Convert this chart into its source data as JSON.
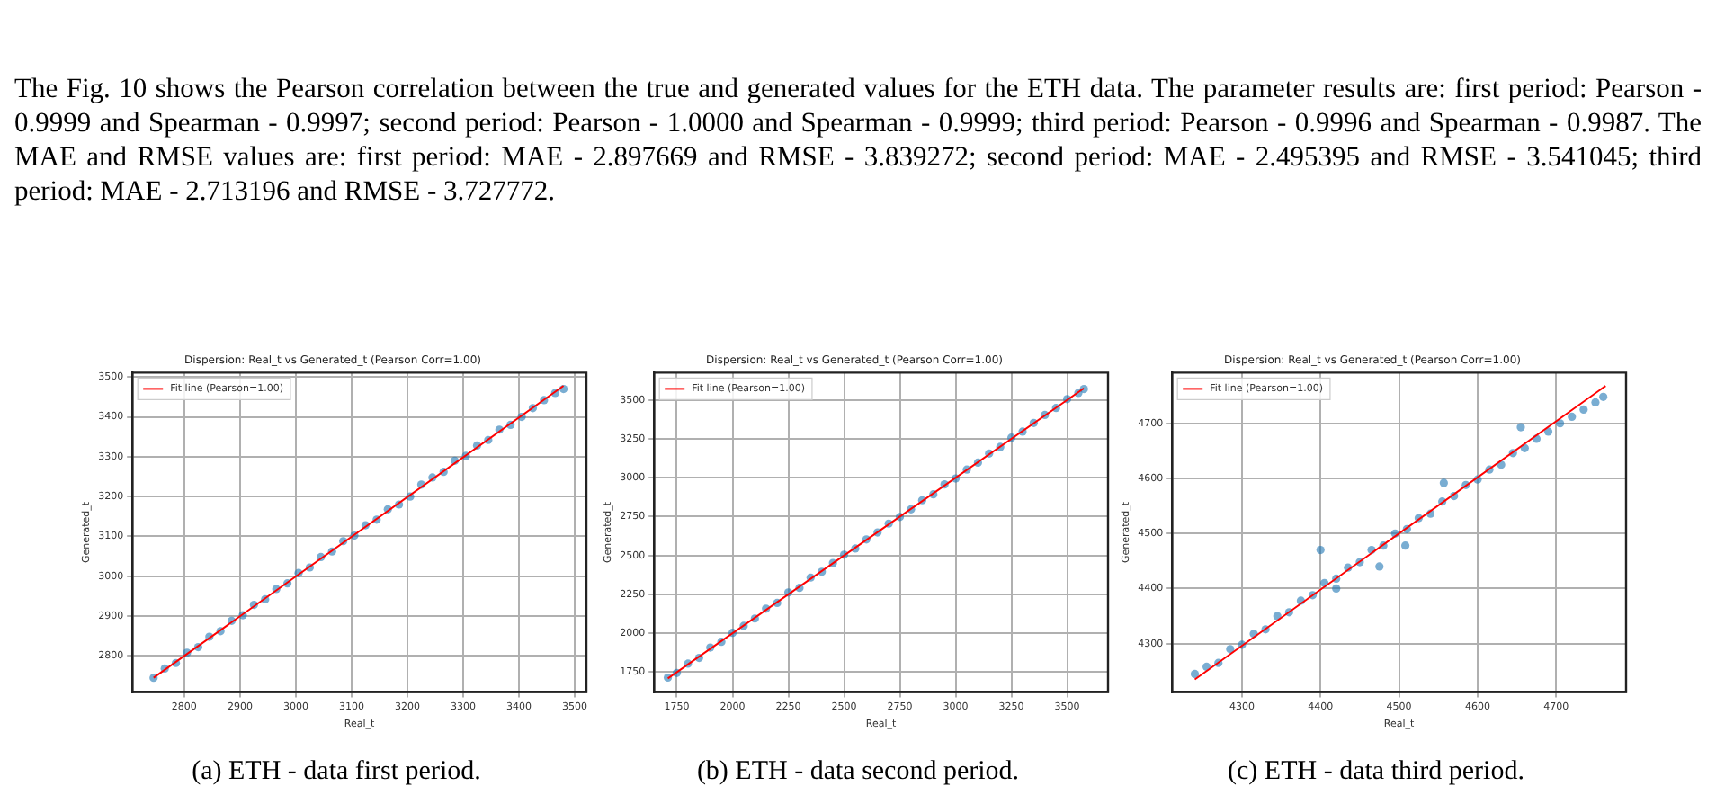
{
  "chart_data": [
    {
      "type": "scatter",
      "title": "Dispersion: Real_t vs Generated_t (Pearson Corr=1.00)",
      "xlabel": "Real_t",
      "ylabel": "Generated_t",
      "grid": true,
      "legend": "top left",
      "annotations": [
        "The Fig. 10 shows the Pearson correlation between the true and generated values for the ETH data. The parameter results are: first period: Pearson - 0.9999 and Spearman - 0.9997; second period: Pearson - 1.0000 and Spearman - 0.9999; third period: Pearson - 0.9996 and Spearman - 0.9987. The MAE and RMSE values are: first period: MAE - 2.897669 and RMSE - 3.839272; second period: MAE - 2.495395 and RMSE - 3.541045; third period: MAE - 2.713196 and RMSE - 3.727772.",
        "(a) ETH - data first period."
      ],
      "xlim": [
        2707,
        3521
      ],
      "xticks": [
        2800,
        2900,
        3000,
        3100,
        3200,
        3300,
        3400,
        3500
      ],
      "ylim": [
        2709,
        3511
      ],
      "yticks": [
        2800,
        2900,
        3000,
        3100,
        3200,
        3300,
        3400,
        3500
      ],
      "series": [
        {
          "marker": "circle",
          "color": "#1f77b4",
          "x": [
            2745,
            2765,
            2785,
            2805,
            2825,
            2845,
            2865,
            2885,
            2905,
            2925,
            2945,
            2965,
            2985,
            3005,
            3025,
            3045,
            3065,
            3085,
            3105,
            3125,
            3145,
            3165,
            3185,
            3205,
            3225,
            3245,
            3265,
            3285,
            3305,
            3325,
            3345,
            3365,
            3385,
            3405,
            3425,
            3445,
            3465,
            3480
          ],
          "values": [
            2745,
            2768,
            2782,
            2808,
            2822,
            2848,
            2862,
            2888,
            2902,
            2928,
            2942,
            2968,
            2982,
            3008,
            3022,
            3048,
            3062,
            3088,
            3102,
            3128,
            3142,
            3168,
            3180,
            3200,
            3230,
            3248,
            3262,
            3290,
            3302,
            3328,
            3342,
            3368,
            3380,
            3400,
            3422,
            3442,
            3460,
            3470
          ]
        },
        {
          "type": "line",
          "marker": "none",
          "name": "Fit line (Pearson=1.00)",
          "color": "#ff0000",
          "x": [
            2745,
            3480
          ],
          "values": [
            2745,
            3478
          ]
        }
      ]
    },
    {
      "type": "scatter",
      "title": "Dispersion: Real_t vs Generated_t (Pearson Corr=1.00)",
      "xlabel": "Real_t",
      "ylabel": "Generated_t",
      "grid": true,
      "legend": "top left",
      "annotations": [
        "(b) ETH - data second period."
      ],
      "xlim": [
        1648,
        3683
      ],
      "xticks": [
        1750,
        2000,
        2250,
        2500,
        2750,
        3000,
        3250,
        3500
      ],
      "ylim": [
        1622,
        3675
      ],
      "yticks": [
        1750,
        2000,
        2250,
        2500,
        2750,
        3000,
        3250,
        3500
      ],
      "series": [
        {
          "marker": "circle",
          "color": "#1f77b4",
          "x": [
            1710,
            1750,
            1800,
            1850,
            1900,
            1950,
            2000,
            2050,
            2100,
            2150,
            2200,
            2250,
            2300,
            2350,
            2400,
            2450,
            2500,
            2550,
            2600,
            2650,
            2700,
            2750,
            2800,
            2850,
            2900,
            2950,
            3000,
            3050,
            3100,
            3150,
            3200,
            3250,
            3300,
            3350,
            3400,
            3450,
            3500,
            3550,
            3575
          ],
          "values": [
            1715,
            1745,
            1805,
            1842,
            1908,
            1945,
            2003,
            2048,
            2095,
            2158,
            2195,
            2262,
            2292,
            2358,
            2395,
            2452,
            2505,
            2545,
            2603,
            2648,
            2705,
            2748,
            2797,
            2855,
            2893,
            2957,
            2995,
            3052,
            3097,
            3155,
            3198,
            3257,
            3296,
            3352,
            3403,
            3448,
            3505,
            3545,
            3570
          ]
        },
        {
          "type": "line",
          "marker": "none",
          "name": "Fit line (Pearson=1.00)",
          "color": "#ff0000",
          "x": [
            1710,
            3575
          ],
          "values": [
            1710,
            3575
          ]
        }
      ]
    },
    {
      "type": "scatter",
      "title": "Dispersion: Real_t vs Generated_t (Pearson Corr=1.00)",
      "xlabel": "Real_t",
      "ylabel": "Generated_t",
      "grid": true,
      "legend": "top left",
      "annotations": [
        "(c) ETH - data third period."
      ],
      "xlim": [
        4211,
        4789
      ],
      "xticks": [
        4300,
        4400,
        4500,
        4600,
        4700
      ],
      "ylim": [
        4212,
        4792
      ],
      "yticks": [
        4300,
        4400,
        4500,
        4600,
        4700
      ],
      "series": [
        {
          "marker": "circle",
          "color": "#1f77b4",
          "x": [
            4240,
            4255,
            4270,
            4285,
            4300,
            4315,
            4330,
            4345,
            4360,
            4375,
            4390,
            4400,
            4405,
            4420,
            4420,
            4435,
            4450,
            4465,
            4475,
            4480,
            4495,
            4508,
            4510,
            4525,
            4540,
            4555,
            4557,
            4570,
            4585,
            4600,
            4615,
            4630,
            4645,
            4655,
            4660,
            4675,
            4690,
            4705,
            4720,
            4735,
            4750,
            4760
          ],
          "values": [
            4245,
            4258,
            4265,
            4290,
            4298,
            4318,
            4326,
            4350,
            4357,
            4378,
            4388,
            4470,
            4410,
            4400,
            4418,
            4438,
            4448,
            4470,
            4440,
            4478,
            4500,
            4478,
            4508,
            4528,
            4536,
            4558,
            4592,
            4568,
            4588,
            4598,
            4616,
            4625,
            4646,
            4693,
            4655,
            4672,
            4685,
            4700,
            4712,
            4725,
            4738,
            4748
          ]
        },
        {
          "type": "line",
          "marker": "none",
          "name": "Fit line (Pearson=1.00)",
          "color": "#ff0000",
          "x": [
            4240,
            4763
          ],
          "values": [
            4235,
            4768
          ]
        }
      ]
    }
  ]
}
